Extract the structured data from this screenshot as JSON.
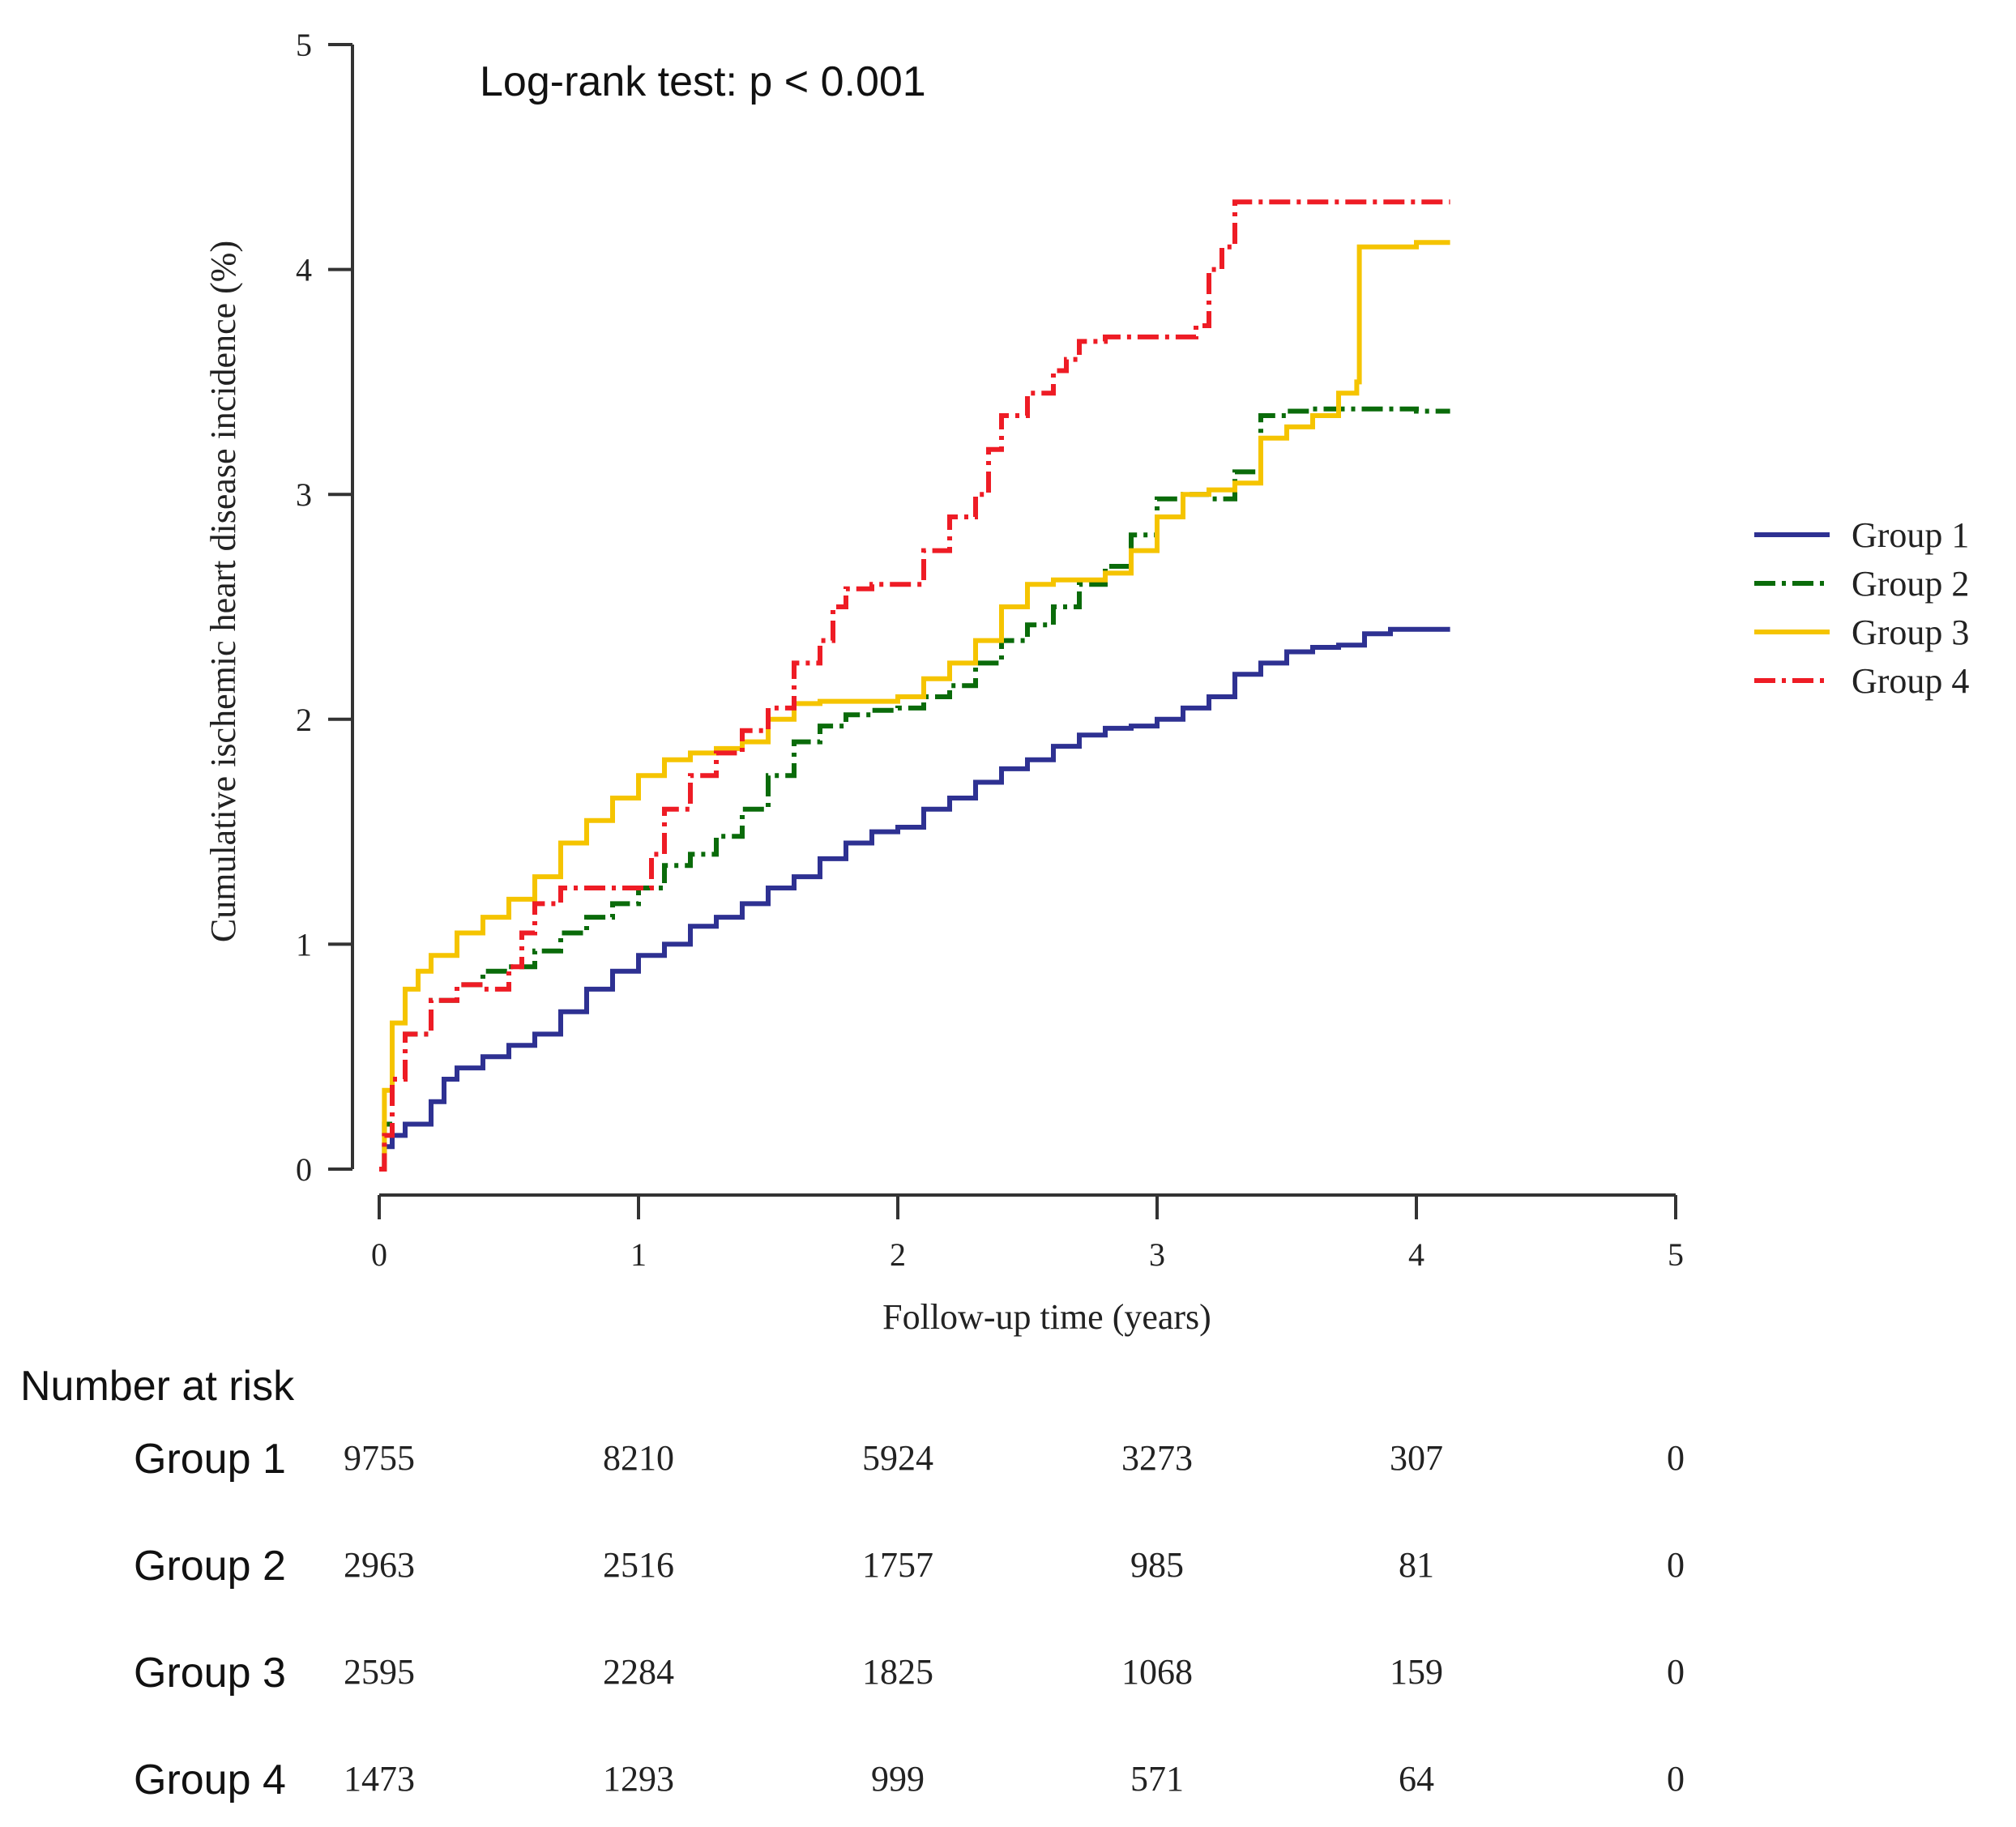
{
  "chart_data": {
    "type": "line",
    "subtype": "kaplan-meier-cumulative-incidence",
    "annotation": "Log-rank test: p < 0.001",
    "xlabel": "Follow-up time (years)",
    "ylabel": "Cumulative ischemic heart disease incidence (%)",
    "xlim": [
      0,
      5
    ],
    "ylim": [
      0,
      5
    ],
    "xticks": [
      0,
      1,
      2,
      3,
      4,
      5
    ],
    "yticks": [
      0,
      1,
      2,
      3,
      4,
      5
    ],
    "grid": false,
    "legend_position": "right",
    "series": [
      {
        "name": "Group 1",
        "color": "#2e3192",
        "dash": "solid",
        "x": [
          0,
          0.02,
          0.05,
          0.1,
          0.2,
          0.25,
          0.3,
          0.4,
          0.5,
          0.6,
          0.7,
          0.8,
          0.9,
          1.0,
          1.1,
          1.2,
          1.3,
          1.4,
          1.5,
          1.6,
          1.7,
          1.8,
          1.9,
          2.0,
          2.1,
          2.2,
          2.3,
          2.4,
          2.5,
          2.6,
          2.7,
          2.8,
          2.9,
          3.0,
          3.1,
          3.2,
          3.3,
          3.4,
          3.5,
          3.6,
          3.7,
          3.8,
          3.9,
          4.0,
          4.13
        ],
        "y": [
          0,
          0.1,
          0.15,
          0.2,
          0.3,
          0.4,
          0.45,
          0.5,
          0.55,
          0.6,
          0.7,
          0.8,
          0.88,
          0.95,
          1.0,
          1.08,
          1.12,
          1.18,
          1.25,
          1.3,
          1.38,
          1.45,
          1.5,
          1.52,
          1.6,
          1.65,
          1.72,
          1.78,
          1.82,
          1.88,
          1.93,
          1.96,
          1.97,
          2.0,
          2.05,
          2.1,
          2.2,
          2.25,
          2.3,
          2.32,
          2.33,
          2.38,
          2.4,
          2.4,
          2.4
        ]
      },
      {
        "name": "Group 2",
        "color": "#0a6b0a",
        "dash": "dash-dot",
        "x": [
          0,
          0.02,
          0.05,
          0.1,
          0.2,
          0.3,
          0.4,
          0.5,
          0.6,
          0.7,
          0.8,
          0.9,
          1.0,
          1.1,
          1.2,
          1.3,
          1.4,
          1.5,
          1.6,
          1.7,
          1.8,
          1.9,
          2.0,
          2.1,
          2.2,
          2.3,
          2.4,
          2.5,
          2.6,
          2.7,
          2.8,
          2.9,
          3.0,
          3.1,
          3.2,
          3.3,
          3.4,
          3.5,
          3.6,
          3.8,
          4.0,
          4.13
        ],
        "y": [
          0,
          0.2,
          0.4,
          0.6,
          0.75,
          0.82,
          0.88,
          0.9,
          0.97,
          1.05,
          1.12,
          1.18,
          1.25,
          1.35,
          1.4,
          1.48,
          1.6,
          1.75,
          1.9,
          1.97,
          2.02,
          2.04,
          2.05,
          2.1,
          2.15,
          2.25,
          2.35,
          2.42,
          2.5,
          2.6,
          2.68,
          2.82,
          2.98,
          3.0,
          2.98,
          3.1,
          3.35,
          3.37,
          3.38,
          3.38,
          3.37,
          3.37
        ]
      },
      {
        "name": "Group 3",
        "color": "#f5c400",
        "dash": "solid",
        "x": [
          0,
          0.02,
          0.05,
          0.1,
          0.15,
          0.2,
          0.3,
          0.4,
          0.5,
          0.6,
          0.7,
          0.8,
          0.9,
          1.0,
          1.1,
          1.2,
          1.3,
          1.4,
          1.5,
          1.6,
          1.7,
          1.8,
          1.9,
          2.0,
          2.1,
          2.2,
          2.3,
          2.4,
          2.5,
          2.6,
          2.7,
          2.8,
          2.9,
          3.0,
          3.1,
          3.2,
          3.3,
          3.4,
          3.5,
          3.6,
          3.7,
          3.77,
          3.78,
          4.0,
          4.13
        ],
        "y": [
          0,
          0.35,
          0.65,
          0.8,
          0.88,
          0.95,
          1.05,
          1.12,
          1.2,
          1.3,
          1.45,
          1.55,
          1.65,
          1.75,
          1.82,
          1.85,
          1.87,
          1.9,
          2.0,
          2.07,
          2.08,
          2.08,
          2.08,
          2.1,
          2.18,
          2.25,
          2.35,
          2.5,
          2.6,
          2.62,
          2.62,
          2.65,
          2.75,
          2.9,
          3.0,
          3.02,
          3.05,
          3.25,
          3.3,
          3.35,
          3.45,
          3.5,
          4.1,
          4.12,
          4.12
        ]
      },
      {
        "name": "Group 4",
        "color": "#ee1c25",
        "dash": "dash-dot",
        "x": [
          0,
          0.02,
          0.05,
          0.1,
          0.2,
          0.3,
          0.4,
          0.45,
          0.5,
          0.55,
          0.6,
          0.7,
          0.8,
          0.9,
          1.0,
          1.05,
          1.1,
          1.2,
          1.3,
          1.4,
          1.5,
          1.6,
          1.7,
          1.75,
          1.8,
          1.9,
          2.0,
          2.1,
          2.2,
          2.3,
          2.35,
          2.4,
          2.5,
          2.6,
          2.65,
          2.7,
          2.8,
          2.9,
          3.0,
          3.1,
          3.15,
          3.2,
          3.25,
          3.3,
          3.4,
          3.6,
          3.8,
          4.0,
          4.13
        ],
        "y": [
          0,
          0.15,
          0.4,
          0.6,
          0.75,
          0.82,
          0.8,
          0.8,
          0.9,
          1.05,
          1.18,
          1.25,
          1.25,
          1.25,
          1.25,
          1.4,
          1.6,
          1.75,
          1.85,
          1.95,
          2.05,
          2.25,
          2.35,
          2.5,
          2.58,
          2.6,
          2.6,
          2.75,
          2.9,
          3.0,
          3.2,
          3.35,
          3.45,
          3.55,
          3.6,
          3.68,
          3.7,
          3.7,
          3.7,
          3.7,
          3.75,
          4.0,
          4.1,
          4.3,
          4.3,
          4.3,
          4.3,
          4.3,
          4.3
        ]
      }
    ],
    "risk_table": {
      "title": "Number at risk",
      "times": [
        0,
        1,
        2,
        3,
        4,
        5
      ],
      "rows": [
        {
          "name": "Group 1",
          "values": [
            "9755",
            "8210",
            "5924",
            "3273",
            "307",
            "0"
          ]
        },
        {
          "name": "Group 2",
          "values": [
            "2963",
            "2516",
            "1757",
            "985",
            "81",
            "0"
          ]
        },
        {
          "name": "Group 3",
          "values": [
            "2595",
            "2284",
            "1825",
            "1068",
            "159",
            "0"
          ]
        },
        {
          "name": "Group 4",
          "values": [
            "1473",
            "1293",
            "999",
            "571",
            "64",
            "0"
          ]
        }
      ]
    }
  }
}
